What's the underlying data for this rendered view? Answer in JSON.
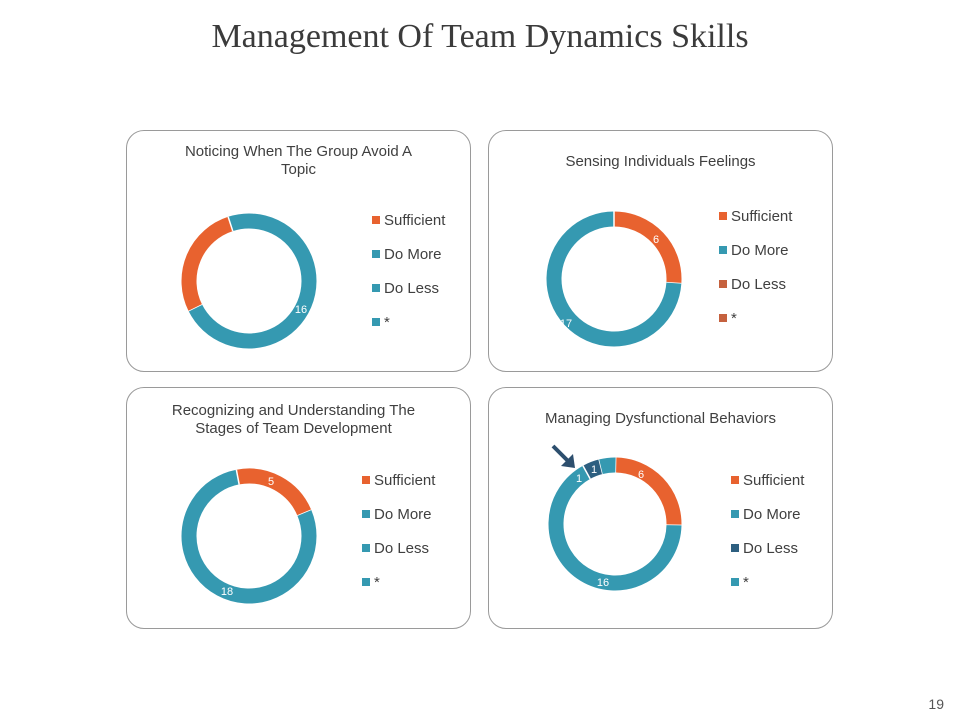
{
  "slide": {
    "title": "Management Of Team Dynamics Skills",
    "page_number": "19"
  },
  "colors": {
    "Sufficient": "#e8622f",
    "Do More": "#3599b1",
    "Do Less": "#2d5f80",
    "*": "#3599b1",
    "Do Less (panel 2)": "#c5613e",
    "* (panel 2)": "#c5613e"
  },
  "chart_data": [
    {
      "type": "pie",
      "title": "Noticing When The Group Avoid A Topic",
      "categories": [
        "Sufficient",
        "Do More",
        "Do Less",
        "*"
      ],
      "values": [
        6,
        16,
        0,
        0
      ],
      "legend": "right"
    },
    {
      "type": "pie",
      "title": "Sensing Individuals Feelings",
      "categories": [
        "Sufficient",
        "Do More",
        "Do Less",
        "*"
      ],
      "values": [
        6,
        17,
        0,
        0
      ],
      "legend": "right"
    },
    {
      "type": "pie",
      "title": "Recognizing and Understanding The Stages of Team Development",
      "categories": [
        "Sufficient",
        "Do More",
        "Do Less",
        "*"
      ],
      "values": [
        5,
        18,
        0,
        0
      ],
      "legend": "right"
    },
    {
      "type": "pie",
      "title": "Managing Dysfunctional Behaviors",
      "categories": [
        "Sufficient",
        "Do More",
        "Do Less",
        "*"
      ],
      "values": [
        6,
        16,
        1,
        1
      ],
      "legend": "right"
    }
  ]
}
